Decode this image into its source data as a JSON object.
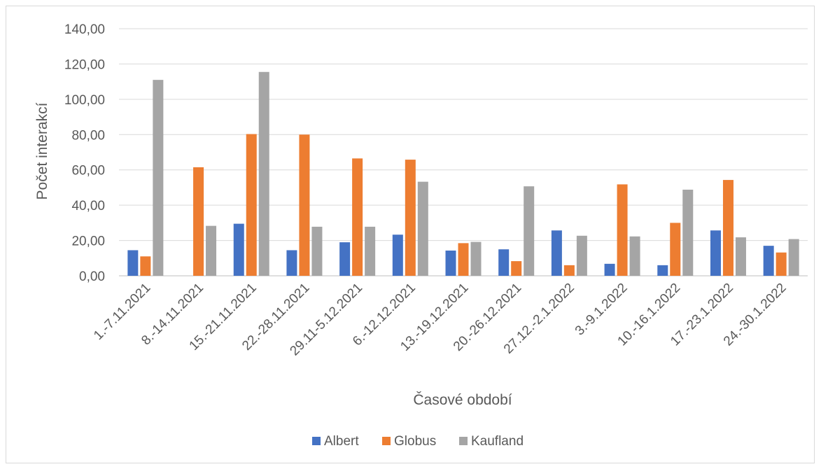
{
  "chart_data": {
    "type": "bar",
    "title": "",
    "xlabel": "Časové období",
    "ylabel": "Počet interakcí",
    "ylim": [
      0,
      140
    ],
    "yticks": [
      "0,00",
      "20,00",
      "40,00",
      "60,00",
      "80,00",
      "100,00",
      "120,00",
      "140,00"
    ],
    "grid": true,
    "legend_position": "bottom",
    "categories": [
      "1.-7.11.2021",
      "8.-14.11.2021",
      "15.-21.11.2021",
      "22.-28.11.2021",
      "29.11-5.12.2021",
      "6.-12.12.2021",
      "13.-19.12.2021",
      "20.-26.12.2021",
      "27.12.-2.1.2022",
      "3.-9.1.2022",
      "10.-16.1.2022",
      "17.-23.1.2022",
      "24.-30.1.2022"
    ],
    "series": [
      {
        "name": "Albert",
        "color": "#4472c4",
        "values": [
          14.5,
          0,
          29.5,
          14.5,
          19,
          23.3,
          14.3,
          15,
          25.7,
          6.8,
          6,
          25.7,
          17
        ]
      },
      {
        "name": "Globus",
        "color": "#ed7d31",
        "values": [
          11,
          61.5,
          80.3,
          80,
          66.5,
          65.8,
          18.5,
          8.3,
          6,
          51.8,
          30,
          54.3,
          13.2
        ]
      },
      {
        "name": "Kaufland",
        "color": "#a5a5a5",
        "values": [
          111,
          28.3,
          115.5,
          27.8,
          27.8,
          53.3,
          19.2,
          50.7,
          22.7,
          22.3,
          48.8,
          21.8,
          20.8
        ]
      }
    ]
  }
}
